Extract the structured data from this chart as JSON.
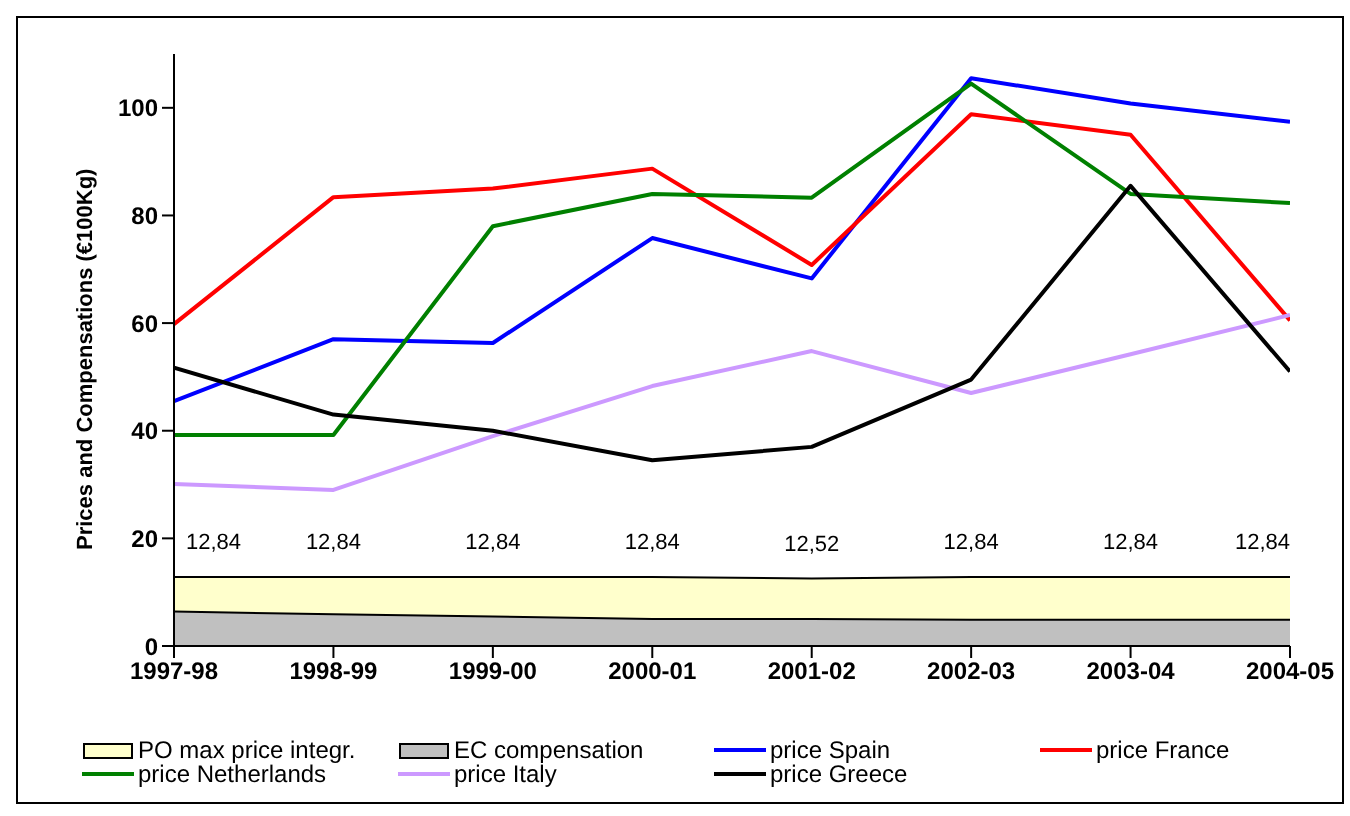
{
  "chart_data": {
    "type": "line",
    "ylabel": "Prices and Compensations (€100Kg)",
    "categories": [
      "1997-98",
      "1998-99",
      "1999-00",
      "2000-01",
      "2001-02",
      "2002-03",
      "2003-04",
      "2004-05"
    ],
    "series": [
      {
        "name": "PO max price integr.",
        "type": "area",
        "color": "#ffffcc",
        "values": [
          12.84,
          12.84,
          12.84,
          12.84,
          12.52,
          12.84,
          12.84,
          12.84
        ],
        "value_labels": [
          "12,84",
          "12,84",
          "12,84",
          "12,84",
          "12,52",
          "12,84",
          "12,84",
          "12,84"
        ]
      },
      {
        "name": "EC compensation",
        "type": "area",
        "color": "#c0c0c0",
        "values": [
          6.4,
          5.9,
          5.5,
          5.0,
          5.0,
          4.9,
          4.9,
          4.9
        ]
      },
      {
        "name": "price Spain",
        "color": "#0000ff",
        "values": [
          45.5,
          57,
          56.3,
          75.8,
          68.3,
          105.5,
          100.8,
          97.4
        ]
      },
      {
        "name": "price France",
        "color": "#ff0000",
        "values": [
          59.8,
          83.4,
          85,
          88.7,
          70.8,
          98.8,
          95,
          60.5
        ]
      },
      {
        "name": "price Netherlands",
        "color": "#008000",
        "values": [
          39.2,
          39.2,
          78,
          84,
          83.3,
          104.5,
          84,
          82.3
        ]
      },
      {
        "name": "price Italy",
        "color": "#cc99ff",
        "values": [
          30.1,
          29,
          39,
          48.3,
          54.8,
          47,
          54.2,
          61.5
        ]
      },
      {
        "name": "price Greece",
        "color": "#000000",
        "values": [
          51.7,
          43,
          40,
          34.5,
          37,
          49.5,
          85.5,
          51
        ]
      }
    ],
    "ylim": [
      0,
      110
    ],
    "yticks": [
      0,
      20,
      40,
      60,
      80,
      100
    ],
    "grid": false,
    "legend": "bottom",
    "marker": "none",
    "line_style": "solid"
  }
}
